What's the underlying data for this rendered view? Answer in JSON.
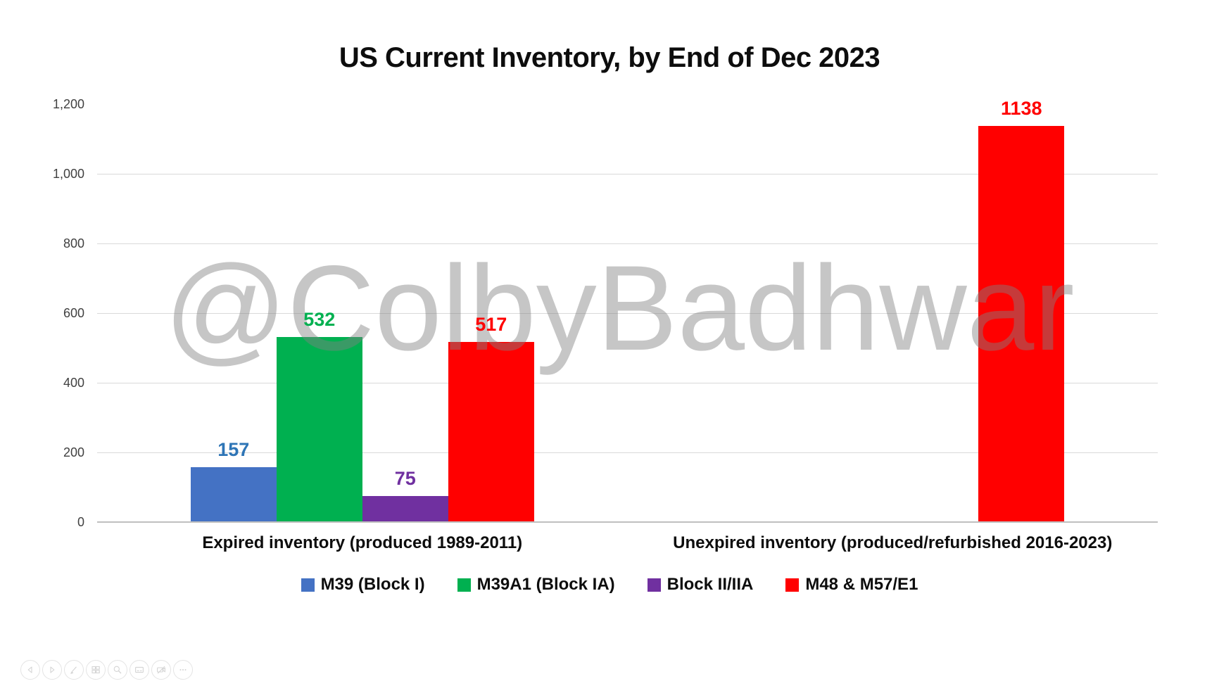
{
  "chart_data": {
    "type": "bar",
    "title": "US Current Inventory, by End of Dec 2023",
    "categories": [
      "Expired inventory (produced 1989-2011)",
      "Unexpired inventory (produced/refurbished 2016-2023)"
    ],
    "series": [
      {
        "name": "M39 (Block I)",
        "color": "#4472C4",
        "label_color": "#2E75B6",
        "values": [
          157,
          null
        ]
      },
      {
        "name": "M39A1 (Block IA)",
        "color": "#00B050",
        "label_color": "#00B050",
        "values": [
          532,
          null
        ]
      },
      {
        "name": "Block II/IIA",
        "color": "#7030A0",
        "label_color": "#7030A0",
        "values": [
          75,
          null
        ]
      },
      {
        "name": "M48 & M57/E1",
        "color": "#FF0000",
        "label_color": "#FF0000",
        "values": [
          517,
          1138
        ]
      }
    ],
    "y_axis": {
      "min": 0,
      "max": 1200,
      "tick_interval": 200,
      "ticks": [
        {
          "value": 0,
          "label": "0"
        },
        {
          "value": 200,
          "label": "200"
        },
        {
          "value": 400,
          "label": "400"
        },
        {
          "value": 600,
          "label": "600"
        },
        {
          "value": 800,
          "label": "800"
        },
        {
          "value": 1000,
          "label": "1,000"
        },
        {
          "value": 1200,
          "label": "1,200"
        }
      ]
    },
    "gridlines": {
      "horizontal": true,
      "values": [
        200,
        400,
        600,
        800,
        1000
      ]
    },
    "legend_position": "bottom"
  },
  "watermark": {
    "text": "@ColbyBadhwar",
    "color": "#808080"
  },
  "presenter_toolbar": {
    "icons": [
      "previous-slide",
      "next-slide",
      "pen",
      "see-all-slides",
      "magnifier",
      "captions",
      "camera-off",
      "more-options"
    ]
  }
}
